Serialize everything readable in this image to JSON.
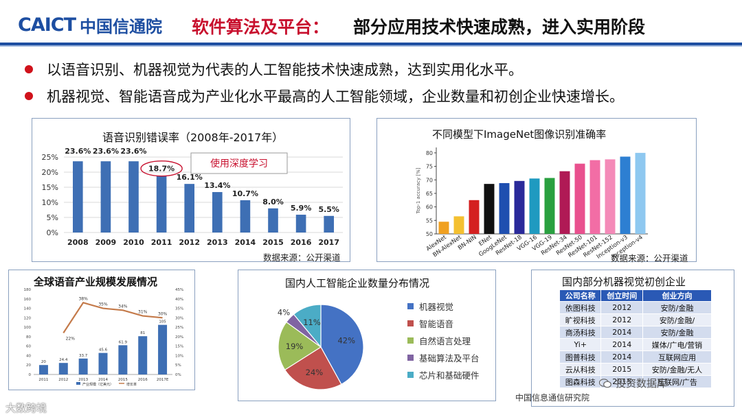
{
  "header": {
    "logo_en": "CAICT",
    "logo_cn": "中国信通院",
    "title": "软件算法及平台：",
    "subtitle": "部分应用技术快速成熟，进入实用阶段"
  },
  "bullets": [
    "以语音识别、机器视觉为代表的人工智能技术快速成熟，达到实用化水平。",
    "机器视觉、智能语音成为产业化水平最高的人工智能领域，企业数量和初创企业快速增长。"
  ],
  "chart_data": [
    {
      "type": "bar",
      "title": "语音识别错误率（2008年-2017年）",
      "categories": [
        "2008",
        "2009",
        "2010",
        "2011",
        "2012",
        "2013",
        "2014",
        "2015",
        "2016",
        "2017"
      ],
      "values": [
        23.6,
        23.6,
        23.6,
        18.7,
        16.1,
        13.4,
        10.7,
        8.0,
        5.9,
        5.5
      ],
      "data_labels": [
        "23.6%",
        "23.6%",
        "23.6%",
        "18.7%",
        "16.1%",
        "13.4%",
        "10.7%",
        "8.0%",
        "5.9%",
        "5.5%"
      ],
      "y_ticks": [
        "0%",
        "5%",
        "10%",
        "15%",
        "20%",
        "25%"
      ],
      "ylim": [
        0,
        25
      ],
      "annotation": "使用深度学习",
      "source": "数据来源：公开渠道",
      "color": "#3e6fb4",
      "annotation_color": "#c8102e"
    },
    {
      "type": "bar",
      "title": "不同模型下ImageNet图像识别准确率",
      "ylabel": "Top-1 accuracy [%]",
      "categories": [
        "AlexNet",
        "BN-AlexNet",
        "BN-NIN",
        "ENet",
        "GoogLeNet",
        "ResNet-18",
        "VGG-16",
        "VGG-19",
        "ResNet-34",
        "ResNet-50",
        "ResNet-101",
        "ResNet-152",
        "Inception-v3",
        "Inception-v4"
      ],
      "values": [
        54.5,
        56.5,
        62.5,
        68.5,
        68.8,
        69.6,
        70.5,
        70.7,
        73.2,
        76.0,
        77.3,
        77.6,
        78.6,
        80.0
      ],
      "colors": [
        "#f0a020",
        "#f4c030",
        "#d42020",
        "#111111",
        "#1f4fb0",
        "#2a2a9a",
        "#1f9ac0",
        "#2aa040",
        "#b01a55",
        "#e9508e",
        "#f26da5",
        "#f48ab8",
        "#2d7fd2",
        "#8ec8f0"
      ],
      "y_ticks": [
        "50",
        "55",
        "60",
        "65",
        "70",
        "75",
        "80"
      ],
      "ylim": [
        50,
        82
      ],
      "source": "数据来源：公开渠道"
    },
    {
      "type": "bar",
      "title": "全球语音产业规模发展情况",
      "categories": [
        "2011",
        "2012",
        "2013",
        "2014",
        "2015",
        "2016",
        "2017E"
      ],
      "series": [
        {
          "name": "产业规模（亿美元）",
          "values": [
            20,
            24.4,
            33.7,
            45.6,
            61.9,
            81,
            105
          ]
        },
        {
          "name": "增长率",
          "values": [
            null,
            22,
            38,
            35,
            34,
            31,
            30
          ]
        }
      ],
      "bar_labels": [
        "20",
        "24.4",
        "33.7",
        "45.6",
        "61.9",
        "81",
        "105"
      ],
      "line_labels": [
        "",
        "22%",
        "38%",
        "35%",
        "34%",
        "31%",
        "30%"
      ],
      "y_ticks": [
        "0",
        "20",
        "40",
        "60",
        "80",
        "100",
        "120",
        "140",
        "160",
        "180"
      ],
      "y2_ticks": [
        "0%",
        "5%",
        "10%",
        "15%",
        "20%",
        "25%",
        "30%",
        "35%",
        "40%",
        "45%"
      ],
      "ylim": [
        0,
        180
      ],
      "y2lim": [
        0,
        45
      ],
      "bar_color": "#3e6fb4",
      "line_color": "#c47a4a"
    },
    {
      "type": "pie",
      "title": "国内人工智能企业数量分布情况",
      "labels": [
        "机器视觉",
        "智能语音",
        "自然语言处理",
        "基础算法及平台",
        "芯片和基础硬件"
      ],
      "values": [
        42,
        24,
        19,
        4,
        11
      ],
      "value_labels": [
        "42%",
        "24%",
        "19%",
        "4%",
        "11%"
      ],
      "colors": [
        "#4472c4",
        "#c0504d",
        "#9bbb59",
        "#8064a2",
        "#4bacc6"
      ]
    },
    {
      "type": "table",
      "title": "国内部分机器视觉初创企业",
      "columns": [
        "公司名称",
        "创立时间",
        "创业方向"
      ],
      "rows": [
        [
          "依图科技",
          "2012",
          "安防/金融"
        ],
        [
          "旷视科技",
          "2012",
          "安防/金融/"
        ],
        [
          "商汤科技",
          "2014",
          "安防/金融"
        ],
        [
          "Yi+",
          "2014",
          "媒体/广电/营销"
        ],
        [
          "图普科技",
          "2014",
          "互联网应用"
        ],
        [
          "云从科技",
          "2015",
          "安防/金融/无人"
        ],
        [
          "图森科技",
          "2015",
          "互联网/广告"
        ]
      ]
    }
  ],
  "footer": {
    "left_watermark": "大数跨境",
    "wechat_watermark": "投资数据库",
    "center_note": "中国信息通信研究院"
  }
}
